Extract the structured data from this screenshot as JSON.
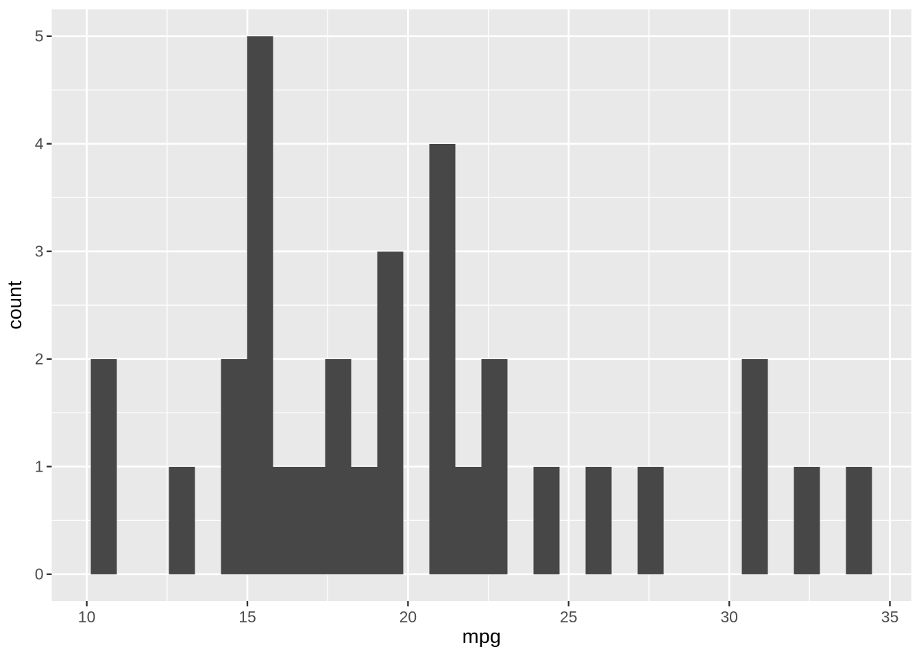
{
  "chart_data": {
    "type": "bar",
    "subtype": "histogram",
    "title": "",
    "xlabel": "mpg",
    "ylabel": "count",
    "x_ticks": [
      10,
      15,
      20,
      25,
      30,
      35
    ],
    "x_tick_labels": [
      "10",
      "15",
      "20",
      "25",
      "30",
      "35"
    ],
    "x_minor_ticks": [
      12.5,
      17.5,
      22.5,
      27.5,
      32.5
    ],
    "y_ticks": [
      0,
      1,
      2,
      3,
      4,
      5
    ],
    "y_tick_labels": [
      "0",
      "1",
      "2",
      "3",
      "4",
      "5"
    ],
    "y_minor_ticks": [
      0.5,
      1.5,
      2.5,
      3.5,
      4.5
    ],
    "x_range": [
      8.91,
      35.67
    ],
    "y_range": [
      -0.25,
      5.25
    ],
    "binwidth": 0.8103,
    "bins": [
      {
        "x0": 10.129,
        "x1": 10.94,
        "count": 2
      },
      {
        "x0": 12.56,
        "x1": 13.371,
        "count": 1
      },
      {
        "x0": 14.181,
        "x1": 14.991,
        "count": 2
      },
      {
        "x0": 14.991,
        "x1": 15.802,
        "count": 5
      },
      {
        "x0": 15.802,
        "x1": 16.612,
        "count": 1
      },
      {
        "x0": 16.612,
        "x1": 17.422,
        "count": 1
      },
      {
        "x0": 17.422,
        "x1": 18.233,
        "count": 2
      },
      {
        "x0": 18.233,
        "x1": 19.043,
        "count": 1
      },
      {
        "x0": 19.043,
        "x1": 19.853,
        "count": 3
      },
      {
        "x0": 20.664,
        "x1": 21.474,
        "count": 4
      },
      {
        "x0": 21.474,
        "x1": 22.284,
        "count": 1
      },
      {
        "x0": 22.284,
        "x1": 23.095,
        "count": 2
      },
      {
        "x0": 23.905,
        "x1": 24.715,
        "count": 1
      },
      {
        "x0": 25.526,
        "x1": 26.336,
        "count": 1
      },
      {
        "x0": 27.146,
        "x1": 27.957,
        "count": 1
      },
      {
        "x0": 30.388,
        "x1": 31.198,
        "count": 2
      },
      {
        "x0": 32.008,
        "x1": 32.819,
        "count": 1
      },
      {
        "x0": 33.629,
        "x1": 34.439,
        "count": 1
      }
    ],
    "legend": null,
    "grid": "on",
    "colors": {
      "bar_fill": "#474747",
      "panel_background": "#e9e9e9",
      "grid_major": "#ffffff",
      "grid_minor": "#ffffff",
      "tick_mark": "#333333",
      "tick_label": "#4d4d4d",
      "axis_title": "#000000",
      "figure_background": "#ffffff"
    }
  }
}
